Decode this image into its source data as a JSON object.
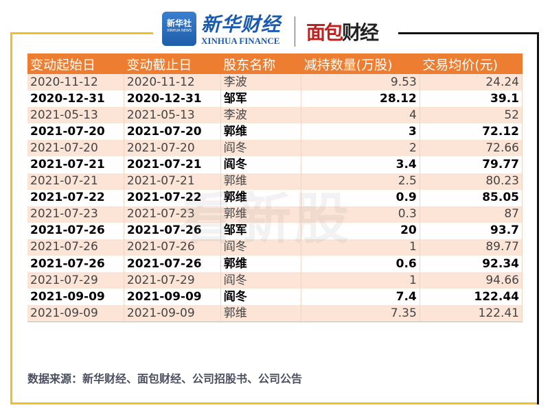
{
  "logos": {
    "xinhua_news": "新华社",
    "xinhua_news_en": "XINHUA NEWS",
    "xinhua_finance": "新华财经",
    "xinhua_finance_en": "XINHUA FINANCE",
    "mianbao": [
      "面包",
      "财经"
    ],
    "watermark": "看新股"
  },
  "table": {
    "headers": [
      "变动起始日",
      "变动截止日",
      "股东名称",
      "减持数量(万股)",
      "交易均价(元)"
    ],
    "rows": [
      [
        "2020-11-12",
        "2020-11-12",
        "李波",
        "9.53",
        "24.24"
      ],
      [
        "2020-12-31",
        "2020-12-31",
        "邹军",
        "28.12",
        "39.1"
      ],
      [
        "2021-05-13",
        "2021-05-13",
        "李波",
        "4",
        "52"
      ],
      [
        "2021-07-20",
        "2021-07-20",
        "郭维",
        "3",
        "72.12"
      ],
      [
        "2021-07-20",
        "2021-07-20",
        "阎冬",
        "2",
        "72.66"
      ],
      [
        "2021-07-21",
        "2021-07-21",
        "阎冬",
        "3.4",
        "79.77"
      ],
      [
        "2021-07-21",
        "2021-07-21",
        "郭维",
        "2.5",
        "80.23"
      ],
      [
        "2021-07-22",
        "2021-07-22",
        "郭维",
        "0.9",
        "85.05"
      ],
      [
        "2021-07-23",
        "2021-07-23",
        "郭维",
        "0.3",
        "87"
      ],
      [
        "2021-07-26",
        "2021-07-26",
        "邹军",
        "20",
        "93.7"
      ],
      [
        "2021-07-26",
        "2021-07-26",
        "阎冬",
        "1",
        "89.77"
      ],
      [
        "2021-07-26",
        "2021-07-26",
        "郭维",
        "0.6",
        "92.34"
      ],
      [
        "2021-07-29",
        "2021-07-29",
        "阎冬",
        "1",
        "94.66"
      ],
      [
        "2021-09-09",
        "2021-09-09",
        "阎冬",
        "7.4",
        "122.44"
      ],
      [
        "2021-09-09",
        "2021-09-09",
        "郭维",
        "7.35",
        "122.41"
      ]
    ]
  },
  "source": "数据来源：新华财经、面包财经、公司招股书、公司公告",
  "colors": {
    "header": "#ed7d31",
    "stripe": "#fce4d6",
    "frame_left": "#f0c020",
    "frame_right": "#111111"
  }
}
